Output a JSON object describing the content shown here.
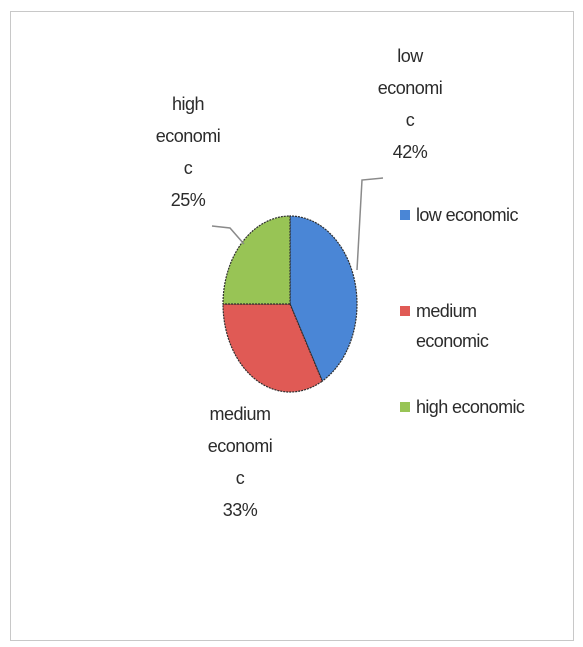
{
  "chart_data": {
    "type": "pie",
    "title": "",
    "categories": [
      "low economic",
      "medium economic",
      "high economic"
    ],
    "values": [
      42,
      33,
      25
    ],
    "unit": "%",
    "colors": [
      "#4a86d6",
      "#e05a55",
      "#98c455"
    ],
    "data_labels": [
      {
        "lines": [
          "low",
          "economi",
          "c",
          "42%"
        ]
      },
      {
        "lines": [
          "medium",
          "economi",
          "c",
          "33%"
        ]
      },
      {
        "lines": [
          "high",
          "economi",
          "c",
          "25%"
        ]
      }
    ],
    "legend": {
      "placement": "right",
      "entries": [
        {
          "lines": [
            "low economic"
          ]
        },
        {
          "lines": [
            "medium",
            "economic"
          ]
        },
        {
          "lines": [
            "high economic"
          ]
        }
      ]
    }
  }
}
